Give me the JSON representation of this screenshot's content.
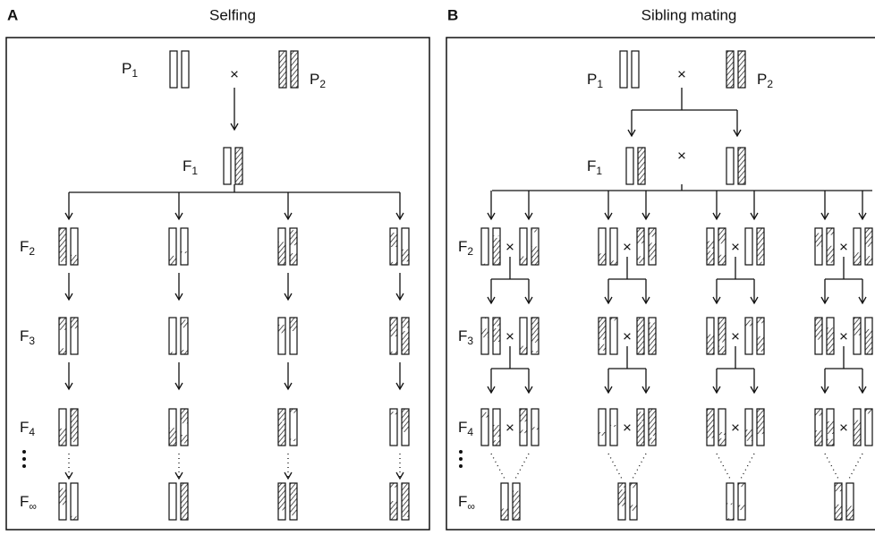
{
  "panel_a": {
    "letter": "A",
    "title": "Selfing"
  },
  "panel_b": {
    "letter": "B",
    "title": "Sibling mating"
  },
  "labels": {
    "p1": {
      "base": "P",
      "sub": "1"
    },
    "p2": {
      "base": "P",
      "sub": "2"
    },
    "f1": {
      "base": "F",
      "sub": "1"
    },
    "f2": {
      "base": "F",
      "sub": "2"
    },
    "f3": {
      "base": "F",
      "sub": "3"
    },
    "f4": {
      "base": "F",
      "sub": "4"
    },
    "f_inf": {
      "base": "F",
      "sub": "∞"
    }
  },
  "cross_symbol": "×"
}
